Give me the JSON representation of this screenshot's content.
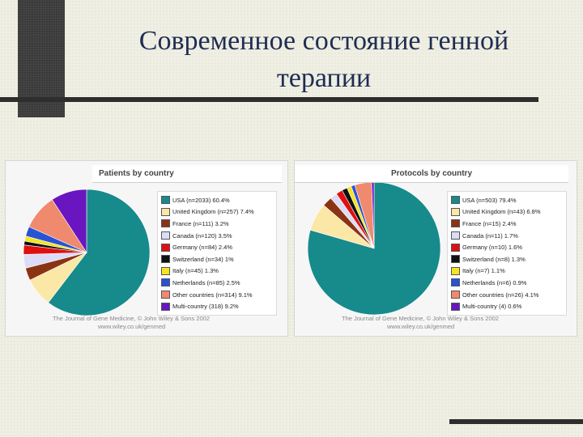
{
  "slide": {
    "title_line1": "Современное состояние генной",
    "title_line2": "терапии"
  },
  "chart_data": [
    {
      "type": "pie",
      "title": "Patients by country",
      "categories": [
        "USA (n=2033)",
        "United Kingdom (n=257)",
        "France (n=111)",
        "Canada (n=120)",
        "Germany (n=84)",
        "Switzerland (n=34)",
        "Italy (n=45)",
        "Netherlands (n=85)",
        "Other countries (n=314)",
        "Multi-country (318)"
      ],
      "labels": [
        "USA (n=2033) 60.4%",
        "United Kingdom (n=257) 7.4%",
        "France (n=111) 3.2%",
        "Canada (n=120) 3.5%",
        "Germany (n=84) 2.4%",
        "Switzerland (n=34) 1%",
        "Italy (n=45) 1.3%",
        "Netherlands (n=85) 2.5%",
        "Other countries (n=314) 9.1%",
        "Multi-country (318) 9.2%"
      ],
      "values": [
        60.4,
        7.4,
        3.2,
        3.5,
        2.4,
        1.0,
        1.3,
        2.5,
        9.1,
        9.2
      ],
      "colors": [
        "#178a8c",
        "#fbe7a6",
        "#8b3414",
        "#dcdcf6",
        "#e01010",
        "#101010",
        "#f4e424",
        "#2a52d4",
        "#f08a6e",
        "#6a16c0"
      ],
      "source_line1": "The Journal of Gene Medicine, © John Wiley & Sons 2002",
      "source_line2": "www.wiley.co.uk/genmed"
    },
    {
      "type": "pie",
      "title": "Protocols by country",
      "categories": [
        "USA (n=503)",
        "United Kingdom (n=43)",
        "France (n=15)",
        "Canada (n=11)",
        "Germany (n=10)",
        "Switzerland (n=8)",
        "Italy (n=7)",
        "Netherlands (n=6)",
        "Other countries (n=26)",
        "Multi-country (4)"
      ],
      "labels": [
        "USA (n=503) 79.4%",
        "United Kingdom (n=43) 6.8%",
        "France (n=15) 2.4%",
        "Canada (n=11) 1.7%",
        "Germany (n=10) 1.6%",
        "Switzerland (n=8) 1.3%",
        "Italy (n=7) 1.1%",
        "Netherlands (n=6) 0.9%",
        "Other countries (n=26) 4.1%",
        "Multi-country (4) 0.6%"
      ],
      "values": [
        79.4,
        6.8,
        2.4,
        1.7,
        1.6,
        1.3,
        1.1,
        0.9,
        4.1,
        0.6
      ],
      "colors": [
        "#178a8c",
        "#fbe7a6",
        "#8b3414",
        "#dcdcf6",
        "#e01010",
        "#101010",
        "#f4e424",
        "#2a52d4",
        "#f08a6e",
        "#6a16c0"
      ],
      "source_line1": "The Journal of Gene Medicine, © John Wiley & Sons 2002",
      "source_line2": "www.wiley.co.uk/genmed"
    }
  ]
}
